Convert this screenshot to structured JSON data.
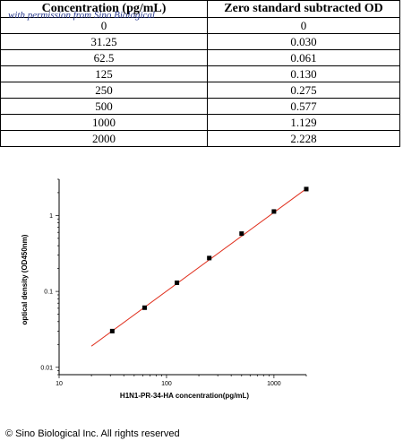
{
  "table": {
    "watermark": "with permission from Sino Biological",
    "headers": [
      "Concentration (pg/mL)",
      "Zero standard subtracted OD"
    ],
    "rows": [
      [
        "0",
        "0"
      ],
      [
        "31.25",
        "0.030"
      ],
      [
        "62.5",
        "0.061"
      ],
      [
        "125",
        "0.130"
      ],
      [
        "250",
        "0.275"
      ],
      [
        "500",
        "0.577"
      ],
      [
        "1000",
        "1.129"
      ],
      [
        "2000",
        "2.228"
      ]
    ]
  },
  "chart_data": {
    "type": "scatter",
    "xlabel": "H1N1-PR-34-HA concentration(pg/mL)",
    "ylabel": "optical density (OD450nm)",
    "xscale": "log",
    "yscale": "log",
    "xlim": [
      10,
      2000
    ],
    "ylim": [
      0.008,
      3
    ],
    "xticks": [
      "10",
      "100",
      "1000"
    ],
    "yticks": [
      "0.01",
      "0.1",
      "1"
    ],
    "grid": false,
    "points": {
      "x": [
        31.25,
        62.5,
        125,
        250,
        500,
        1000,
        2000
      ],
      "y": [
        0.03,
        0.061,
        0.13,
        0.275,
        0.577,
        1.129,
        2.228
      ]
    },
    "fit_line": {
      "x": [
        20,
        2000
      ],
      "y": [
        0.019,
        2.25
      ],
      "color": "#e0301e"
    },
    "marker_color": "#000000"
  },
  "footer": {
    "copyright": "© Sino Biological Inc. All rights reserved"
  }
}
